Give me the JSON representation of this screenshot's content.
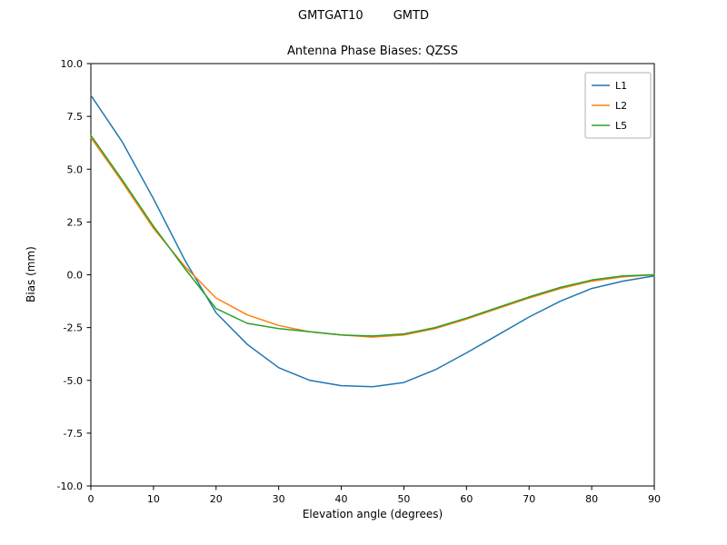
{
  "suptitle": "GMTGAT10        GMTD",
  "chart_data": {
    "type": "line",
    "title": "Antenna Phase Biases: QZSS",
    "xlabel": "Elevation angle (degrees)",
    "ylabel": "Bias (mm)",
    "xlim": [
      0,
      90
    ],
    "ylim": [
      -10,
      10
    ],
    "xticks": [
      0,
      10,
      20,
      30,
      40,
      50,
      60,
      70,
      80,
      90
    ],
    "yticks": [
      -10,
      -7.5,
      -5,
      -2.5,
      0,
      2.5,
      5,
      7.5,
      10
    ],
    "grid": false,
    "legend_position": "upper right",
    "x": [
      0,
      5,
      10,
      15,
      20,
      25,
      30,
      35,
      40,
      45,
      50,
      55,
      60,
      65,
      70,
      75,
      80,
      85,
      90
    ],
    "series": [
      {
        "name": "L1",
        "color": "#1f77b4",
        "values": [
          8.5,
          6.3,
          3.6,
          0.7,
          -1.8,
          -3.3,
          -4.4,
          -5.0,
          -5.25,
          -5.3,
          -5.1,
          -4.5,
          -3.7,
          -2.85,
          -2.0,
          -1.25,
          -0.65,
          -0.3,
          -0.05
        ]
      },
      {
        "name": "L2",
        "color": "#ff7f0e",
        "values": [
          6.5,
          4.4,
          2.2,
          0.4,
          -1.1,
          -1.9,
          -2.4,
          -2.7,
          -2.85,
          -2.95,
          -2.85,
          -2.55,
          -2.1,
          -1.6,
          -1.1,
          -0.65,
          -0.3,
          -0.1,
          0.0
        ]
      },
      {
        "name": "L5",
        "color": "#2ca02c",
        "values": [
          6.6,
          4.5,
          2.3,
          0.3,
          -1.6,
          -2.3,
          -2.55,
          -2.7,
          -2.85,
          -2.9,
          -2.8,
          -2.5,
          -2.05,
          -1.55,
          -1.05,
          -0.6,
          -0.25,
          -0.05,
          0.0
        ]
      }
    ]
  }
}
